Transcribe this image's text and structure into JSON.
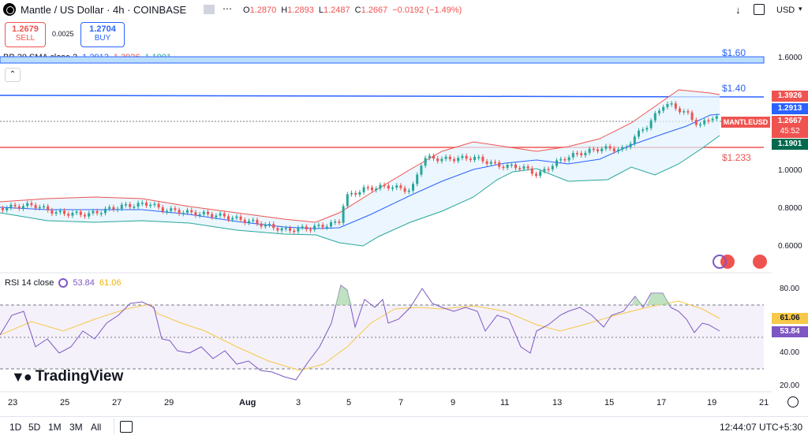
{
  "header": {
    "symbol_title": "Mantle / US Dollar · 4h · COINBASE",
    "ohlc": [
      {
        "label": "O",
        "value": "1.2870"
      },
      {
        "label": "H",
        "value": "1.2893"
      },
      {
        "label": "L",
        "value": "1.2487"
      },
      {
        "label": "C",
        "value": "1.2667"
      },
      {
        "label": "",
        "value": "−0.0192 (−1.49%)"
      }
    ],
    "currency": "USD"
  },
  "trade": {
    "sell_price": "1.2679",
    "sell_label": "SELL",
    "spread": "0.0025",
    "buy_price": "1.2704",
    "buy_label": "BUY"
  },
  "bb": {
    "name": "BB 20 SMA close 2",
    "v1": "1.2913",
    "v2": "1.3926",
    "v3": "1.1901"
  },
  "rsi": {
    "name": "RSI 14 close",
    "v1": "53.84",
    "v2": "61.06"
  },
  "levels": {
    "l160": "$1.60",
    "l140": "$1.40",
    "l1233": "$1.233"
  },
  "price_axis": [
    "1.6000",
    "1.4000",
    "1.0000",
    "0.8000",
    "0.6000"
  ],
  "price_labels": {
    "upper": "1.3926",
    "basis": "1.2913",
    "symbol": "MANTLEUSD",
    "last": "1.2667",
    "countdown": "45:52",
    "lower": "1.1901"
  },
  "rsi_axis": [
    "80.00",
    "40.00",
    "20.00"
  ],
  "rsi_labels": {
    "ma": "61.06",
    "rsi": "53.84"
  },
  "x_axis": [
    "23",
    "25",
    "27",
    "29",
    "Aug",
    "3",
    "5",
    "7",
    "9",
    "11",
    "13",
    "15",
    "17",
    "19",
    "21"
  ],
  "ranges": [
    "1D",
    "5D",
    "1M",
    "3M",
    "All"
  ],
  "clock": "12:44:07 UTC+5:30",
  "logo": "TradingView",
  "colors": {
    "up": "#26a69a",
    "down": "#ef5350",
    "bb_upper": "#ef5350",
    "bb_lower": "#26a69a",
    "bb_basis": "#2962ff",
    "rsi": "#7e57c2",
    "rsi_ma": "#f7c948"
  }
}
